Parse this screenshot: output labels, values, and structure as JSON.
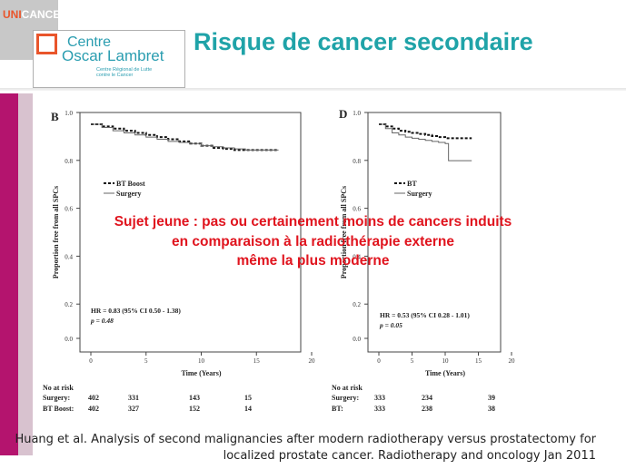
{
  "header": {
    "brand_uni": "UNI",
    "brand_cancer": "CANCER",
    "logo_line1": "Centre",
    "logo_line2": "Oscar Lambret",
    "logo_sub1": "Centre Régional de Lutte",
    "logo_sub2": "contre le Cancer",
    "title": "Risque de cancer secondaire",
    "colors": {
      "title": "#1fa3a8",
      "accent": "#e9552b",
      "sidebar": "#b4146e"
    }
  },
  "overlay": {
    "line1": "Sujet jeune : pas ou certainement moins de cancers induits",
    "line2": "en comparaison à la radiothérapie externe",
    "line3": "même la plus moderne",
    "color": "#e0141e"
  },
  "citation": {
    "line1": "Huang et al. Analysis of second malignancies after modern radiotherapy versus prostatectomy for",
    "line2": "localized prostate cancer. Radiotherapy and oncology Jan 2011"
  },
  "chart_data": [
    {
      "type": "line",
      "panel": "B",
      "ylabel": "Proportion free from all SPCs",
      "xlabel": "Time (Years)",
      "xlim": [
        0,
        20
      ],
      "ylim": [
        0.0,
        1.0
      ],
      "xticks": [
        "0",
        "5",
        "10",
        "15",
        "20"
      ],
      "yticks": [
        "0.0",
        "0.2",
        "0.4",
        "0.6",
        "0.8",
        "1.0"
      ],
      "legend": [
        "BT Boost",
        "Surgery"
      ],
      "stat_line1": "HR = 0.83 (95% CI 0.50 - 1.38)",
      "stat_line2": "p = 0.48",
      "series": [
        {
          "name": "BT Boost",
          "style": "dashed",
          "x": [
            0,
            1,
            2,
            3,
            4,
            5,
            6,
            7,
            8,
            9,
            10,
            11,
            12,
            13,
            14,
            17
          ],
          "y": [
            1.0,
            0.99,
            0.98,
            0.97,
            0.96,
            0.95,
            0.94,
            0.93,
            0.92,
            0.91,
            0.9,
            0.89,
            0.885,
            0.88,
            0.88,
            0.88
          ]
        },
        {
          "name": "Surgery",
          "style": "solid",
          "x": [
            0,
            1,
            2,
            3,
            4,
            5,
            6,
            7,
            8,
            9,
            10,
            11,
            12,
            13,
            14,
            17
          ],
          "y": [
            1.0,
            0.985,
            0.97,
            0.96,
            0.95,
            0.94,
            0.93,
            0.92,
            0.915,
            0.91,
            0.9,
            0.895,
            0.89,
            0.885,
            0.88,
            0.88
          ]
        }
      ],
      "risk_table": {
        "header": "No at risk",
        "rows": [
          {
            "label": "Surgery:",
            "values": [
              "402",
              "331",
              "143",
              "15"
            ]
          },
          {
            "label": "BT Boost:",
            "values": [
              "402",
              "327",
              "152",
              "14"
            ]
          }
        ]
      }
    },
    {
      "type": "line",
      "panel": "D",
      "ylabel": "Proportion free from all SPCs",
      "xlabel": "Time (Years)",
      "xlim": [
        0,
        20
      ],
      "ylim": [
        0.0,
        1.0
      ],
      "xticks": [
        "0",
        "5",
        "10",
        "15",
        "20"
      ],
      "yticks": [
        "0.0",
        "0.2",
        "0.4",
        "0.6",
        "0.8",
        "1.0"
      ],
      "legend": [
        "BT",
        "Surgery"
      ],
      "stat_line1": "HR = 0.53 (95% CI 0.28 - 1.01)",
      "stat_line2": "p = 0.05",
      "series": [
        {
          "name": "BT",
          "style": "dashed",
          "x": [
            0,
            1,
            2,
            3,
            4,
            5,
            6,
            7,
            8,
            9,
            10,
            12,
            14
          ],
          "y": [
            1.0,
            0.99,
            0.98,
            0.97,
            0.965,
            0.96,
            0.955,
            0.95,
            0.945,
            0.94,
            0.935,
            0.935,
            0.935
          ]
        },
        {
          "name": "Surgery",
          "style": "solid",
          "x": [
            0,
            1,
            2,
            3,
            4,
            5,
            6,
            7,
            8,
            9,
            10,
            10.5,
            14
          ],
          "y": [
            1.0,
            0.98,
            0.96,
            0.95,
            0.94,
            0.935,
            0.93,
            0.925,
            0.92,
            0.915,
            0.91,
            0.83,
            0.83
          ]
        }
      ],
      "risk_table": {
        "header": "No at risk",
        "rows": [
          {
            "label": "Surgery:",
            "values": [
              "333",
              "234",
              "39"
            ]
          },
          {
            "label": "BT:",
            "values": [
              "333",
              "238",
              "38"
            ]
          }
        ]
      }
    }
  ]
}
